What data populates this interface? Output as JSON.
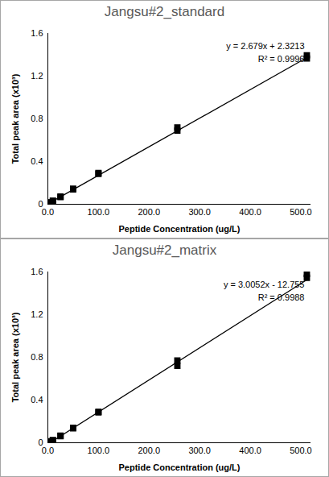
{
  "chart_data": [
    {
      "type": "scatter",
      "title": "Jangsu#2_standard",
      "x_label": "Peptide Concentration (ug/L)",
      "y_label": "Total peak area (x10³)",
      "xlim": [
        0,
        520
      ],
      "xticks": [
        {
          "value": 0,
          "label": "0.0"
        },
        {
          "value": 100,
          "label": "100.0"
        },
        {
          "value": 200,
          "label": "200.0"
        },
        {
          "value": 300,
          "label": "300.0"
        },
        {
          "value": 400,
          "label": "400.0"
        },
        {
          "value": 500,
          "label": "500.0"
        }
      ],
      "ylim": [
        0,
        1.6
      ],
      "yticks": [
        0,
        0.4,
        0.8,
        1.2,
        1.6
      ],
      "grid": false,
      "annotations": [
        "y = 2.679x + 2.3213",
        "R² = 0.9996"
      ],
      "series": [
        {
          "type": "scatter",
          "marker": "square",
          "color": "#000000",
          "x": [
            2,
            2,
            5,
            5,
            10,
            10,
            25,
            25,
            50,
            50,
            100,
            100,
            256,
            256,
            512,
            512
          ],
          "values": [
            0.007,
            0.009,
            0.015,
            0.017,
            0.03,
            0.033,
            0.068,
            0.072,
            0.14,
            0.145,
            0.285,
            0.292,
            0.69,
            0.72,
            1.365,
            1.395
          ]
        },
        {
          "type": "line",
          "line_style": "solid",
          "color": "#000000",
          "x": [
            2,
            512
          ],
          "values": [
            0.008,
            1.374
          ]
        }
      ]
    },
    {
      "type": "scatter",
      "title": "Jangsu#2_matrix",
      "x_label": "Peptide Concentration (ug/L)",
      "y_label": "Total peak area (x10³)",
      "xlim": [
        0,
        520
      ],
      "xticks": [
        {
          "value": 0,
          "label": "0.0"
        },
        {
          "value": 100,
          "label": "100.0"
        },
        {
          "value": 200,
          "label": "200.0"
        },
        {
          "value": 300,
          "label": "300.0"
        },
        {
          "value": 400,
          "label": "400.0"
        },
        {
          "value": 500,
          "label": "500.0"
        }
      ],
      "ylim": [
        0,
        1.6
      ],
      "yticks": [
        0,
        0.4,
        0.8,
        1.2,
        1.6
      ],
      "grid": false,
      "annotations": [
        "y = 3.0052x - 12.755",
        "R² = 0.9988"
      ],
      "series": [
        {
          "type": "scatter",
          "marker": "square",
          "color": "#000000",
          "x": [
            2,
            2,
            5,
            5,
            10,
            10,
            25,
            25,
            50,
            50,
            100,
            100,
            256,
            256,
            512,
            512
          ],
          "values": [
            0.005,
            0.007,
            0.01,
            0.013,
            0.022,
            0.025,
            0.062,
            0.066,
            0.135,
            0.14,
            0.285,
            0.29,
            0.72,
            0.77,
            1.545,
            1.58
          ]
        },
        {
          "type": "line",
          "line_style": "solid",
          "color": "#000000",
          "x": [
            5,
            512
          ],
          "values": [
            0.002,
            1.526
          ]
        }
      ]
    }
  ]
}
